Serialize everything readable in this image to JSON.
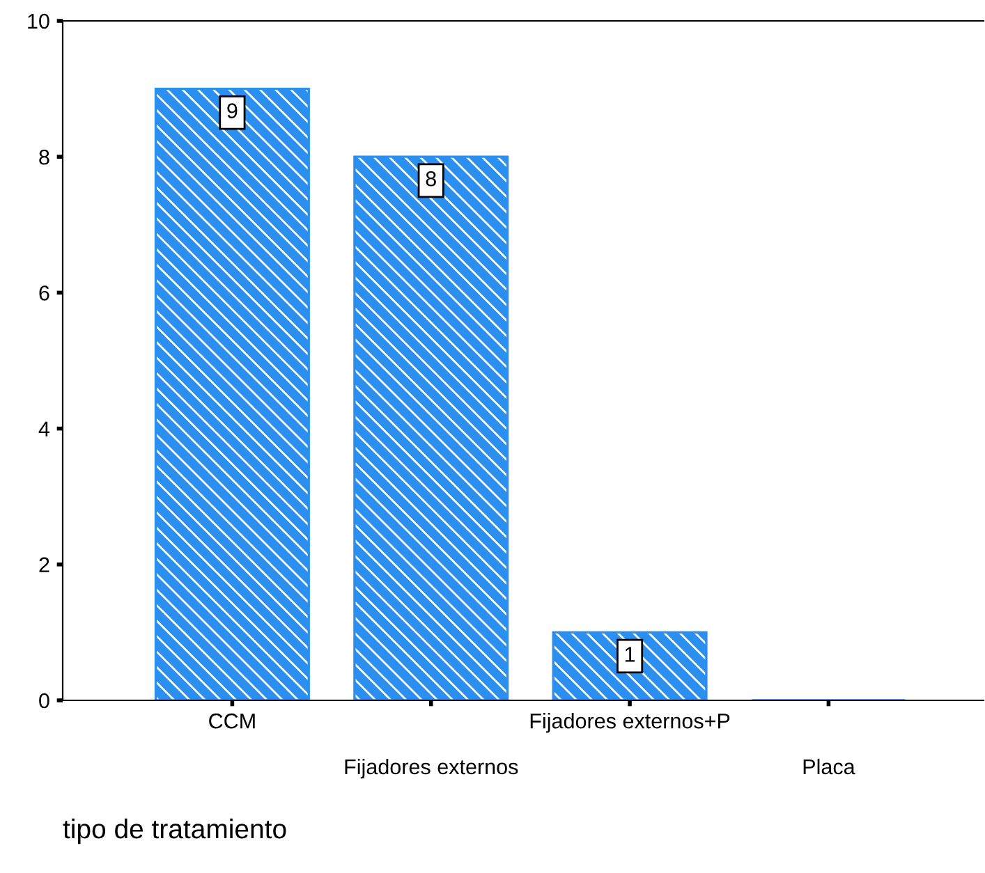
{
  "chart_data": {
    "type": "bar",
    "xlabel": "tipo de tratamiento",
    "categories": [
      "CCM",
      "Fijadores externos",
      "Fijadores externos+P",
      "Placa"
    ],
    "values": [
      9,
      8,
      1,
      0
    ],
    "value_labels": [
      "9",
      "8",
      "1",
      null
    ],
    "color": "#2b8fef",
    "ylim": [
      0,
      10
    ],
    "yticks": [
      0,
      2,
      4,
      6,
      8,
      10
    ],
    "grid": false,
    "legend": false
  }
}
